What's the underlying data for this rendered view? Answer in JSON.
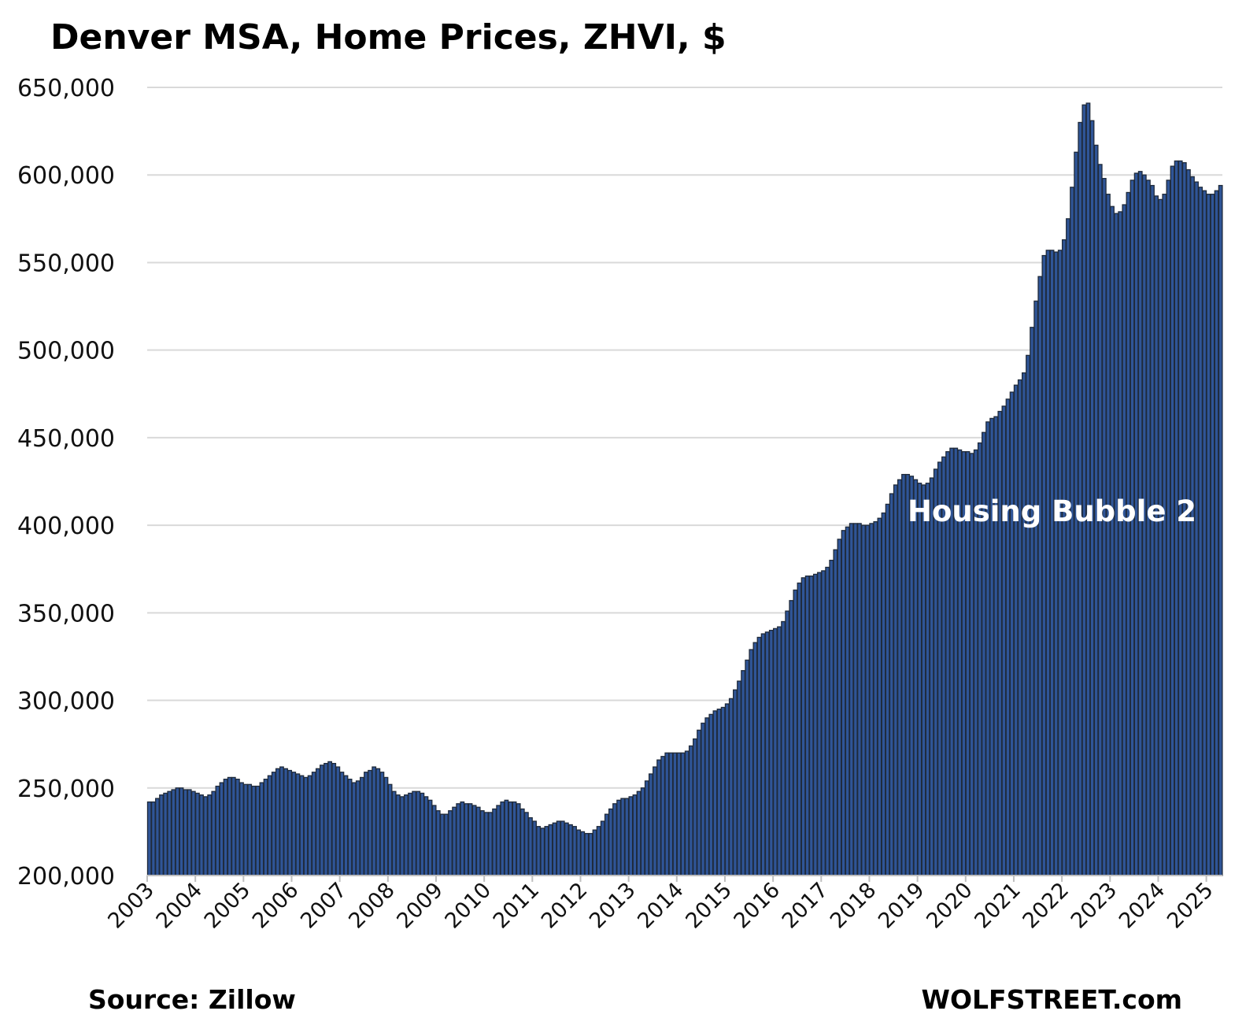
{
  "chart_data": {
    "type": "bar",
    "title": "Denver MSA, Home Prices, ZHVI, $",
    "xlabel": "",
    "ylabel": "",
    "ylim": [
      200000,
      650000
    ],
    "yticks": [
      "200,000",
      "250,000",
      "300,000",
      "350,000",
      "400,000",
      "450,000",
      "500,000",
      "550,000",
      "600,000",
      "650,000"
    ],
    "ytick_values": [
      200000,
      250000,
      300000,
      350000,
      400000,
      450000,
      500000,
      550000,
      600000,
      650000
    ],
    "xticks": [
      "2003",
      "2004",
      "2005",
      "2006",
      "2007",
      "2008",
      "2009",
      "2010",
      "2011",
      "2012",
      "2013",
      "2014",
      "2015",
      "2016",
      "2017",
      "2018",
      "2019",
      "2020",
      "2021",
      "2022",
      "2023",
      "2024",
      "2025"
    ],
    "grid": true,
    "frequency": "monthly",
    "start": "2003-01",
    "annotation": "Housing Bubble 2",
    "source": "Source: Zillow",
    "credit": "WOLFSTREET.com",
    "colors": {
      "bar": "#2f5597",
      "bar_edge": "#1f2a3a",
      "grid": "#d9d9d9"
    },
    "values_thousands": [
      242,
      242,
      244,
      246,
      247,
      248,
      249,
      250,
      250,
      249,
      249,
      248,
      247,
      246,
      245,
      246,
      248,
      251,
      253,
      255,
      256,
      256,
      255,
      253,
      252,
      252,
      251,
      251,
      253,
      255,
      257,
      259,
      261,
      262,
      261,
      260,
      259,
      258,
      257,
      256,
      257,
      259,
      261,
      263,
      264,
      265,
      264,
      262,
      259,
      257,
      255,
      253,
      254,
      256,
      259,
      260,
      262,
      261,
      259,
      256,
      252,
      248,
      246,
      245,
      246,
      247,
      248,
      248,
      247,
      245,
      243,
      240,
      237,
      235,
      235,
      237,
      239,
      241,
      242,
      241,
      241,
      240,
      239,
      237,
      236,
      236,
      238,
      240,
      242,
      243,
      242,
      242,
      241,
      238,
      236,
      233,
      231,
      228,
      227,
      228,
      229,
      230,
      231,
      231,
      230,
      229,
      228,
      226,
      225,
      224,
      224,
      226,
      228,
      231,
      235,
      238,
      241,
      243,
      244,
      244,
      245,
      246,
      248,
      250,
      254,
      258,
      262,
      266,
      268,
      270,
      270,
      270,
      270,
      270,
      271,
      274,
      278,
      283,
      287,
      290,
      292,
      294,
      295,
      296,
      298,
      301,
      306,
      311,
      317,
      323,
      329,
      333,
      336,
      338,
      339,
      340,
      341,
      342,
      345,
      351,
      357,
      363,
      367,
      370,
      371,
      371,
      372,
      373,
      374,
      376,
      380,
      386,
      392,
      397,
      399,
      401,
      401,
      401,
      400,
      400,
      401,
      402,
      404,
      407,
      412,
      418,
      423,
      426,
      429,
      429,
      428,
      426,
      424,
      423,
      424,
      427,
      432,
      436,
      439,
      442,
      444,
      444,
      443,
      442,
      442,
      441,
      443,
      447,
      453,
      459,
      461,
      462,
      465,
      468,
      472,
      476,
      480,
      483,
      487,
      497,
      513,
      528,
      542,
      554,
      557,
      557,
      556,
      557,
      563,
      575,
      593,
      613,
      630,
      640,
      641,
      631,
      617,
      606,
      598,
      589,
      582,
      578,
      579,
      583,
      590,
      597,
      601,
      602,
      600,
      597,
      594,
      588,
      586,
      589,
      597,
      605,
      608,
      608,
      607,
      603,
      599,
      596,
      593,
      591,
      589,
      589,
      591,
      594
    ]
  }
}
